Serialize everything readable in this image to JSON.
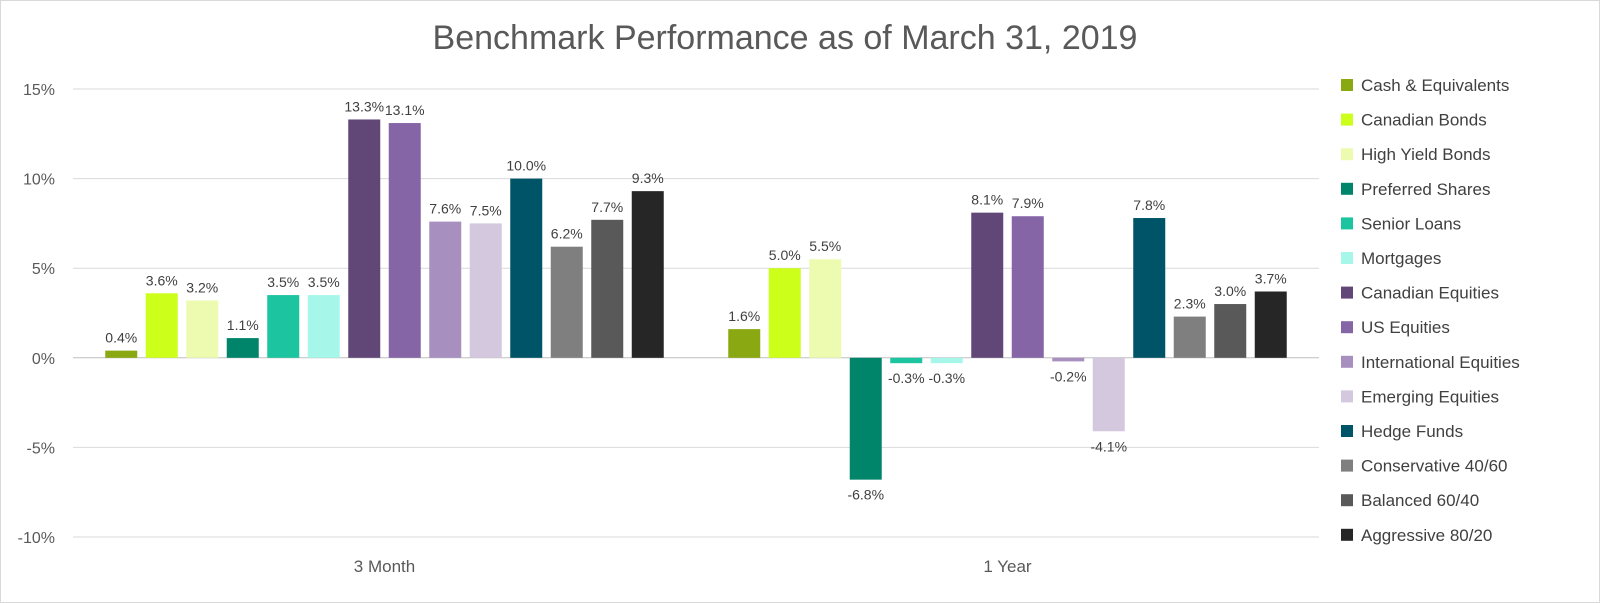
{
  "chart_data": {
    "type": "bar",
    "title": "Benchmark Performance as of March 31, 2019",
    "categories": [
      "3 Month",
      "1 Year"
    ],
    "ylim": [
      -10,
      15
    ],
    "yticks": [
      15,
      10,
      5,
      0,
      -5,
      -10
    ],
    "ytick_labels": [
      "15%",
      "10%",
      "5%",
      "0%",
      "-5%",
      "-10%"
    ],
    "grid": true,
    "legend_position": "right",
    "series": [
      {
        "name": "Cash & Equivalents",
        "color": "#8aa812",
        "values": [
          0.4,
          1.6
        ],
        "labels": [
          "0.4%",
          "1.6%"
        ]
      },
      {
        "name": "Canadian Bonds",
        "color": "#ccff1a",
        "values": [
          3.6,
          5.0
        ],
        "labels": [
          "3.6%",
          "5.0%"
        ]
      },
      {
        "name": "High Yield Bonds",
        "color": "#ecfbb0",
        "values": [
          3.2,
          5.5
        ],
        "labels": [
          "3.2%",
          "5.5%"
        ]
      },
      {
        "name": "Preferred Shares",
        "color": "#00856b",
        "values": [
          1.1,
          -6.8
        ],
        "labels": [
          "1.1%",
          "-6.8%"
        ]
      },
      {
        "name": "Senior Loans",
        "color": "#1cc4a0",
        "values": [
          3.5,
          -0.3
        ],
        "labels": [
          "3.5%",
          "-0.3%"
        ]
      },
      {
        "name": "Mortgages",
        "color": "#a6f7ea",
        "values": [
          3.5,
          -0.3
        ],
        "labels": [
          "3.5%",
          "-0.3%"
        ]
      },
      {
        "name": "Canadian Equities",
        "color": "#614778",
        "values": [
          13.3,
          8.1
        ],
        "labels": [
          "13.3%",
          "8.1%"
        ]
      },
      {
        "name": "US Equities",
        "color": "#8565a6",
        "values": [
          13.1,
          7.9
        ],
        "labels": [
          "13.1%",
          "7.9%"
        ]
      },
      {
        "name": "International Equities",
        "color": "#a790c0",
        "values": [
          7.6,
          -0.2
        ],
        "labels": [
          "7.6%",
          "-0.2%"
        ]
      },
      {
        "name": "Emerging Equities",
        "color": "#d3c8de",
        "values": [
          7.5,
          -4.1
        ],
        "labels": [
          "7.5%",
          "-4.1%"
        ]
      },
      {
        "name": "Hedge Funds",
        "color": "#005468",
        "values": [
          10.0,
          7.8
        ],
        "labels": [
          "10.0%",
          "7.8%"
        ]
      },
      {
        "name": "Conservative 40/60",
        "color": "#7f7f7f",
        "values": [
          6.2,
          2.3
        ],
        "labels": [
          "6.2%",
          "2.3%"
        ]
      },
      {
        "name": "Balanced 60/40",
        "color": "#595959",
        "values": [
          7.7,
          3.0
        ],
        "labels": [
          "7.7%",
          "3.0%"
        ]
      },
      {
        "name": "Aggressive 80/20",
        "color": "#262626",
        "values": [
          9.3,
          3.7
        ],
        "labels": [
          "9.3%",
          "3.7%"
        ]
      }
    ]
  }
}
